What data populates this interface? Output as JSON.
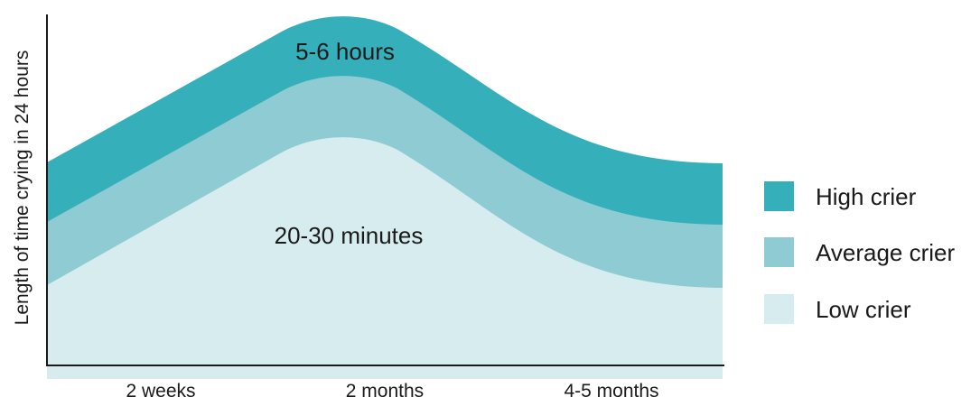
{
  "chart_data": {
    "type": "area",
    "title": "",
    "xlabel": "",
    "ylabel": "Length of time crying in 24 hours",
    "categories": [
      "2 weeks",
      "2 months",
      "4-5 months"
    ],
    "series": [
      {
        "name": "High crier",
        "color": "#35b0bb",
        "values": [
          5,
          8,
          5
        ]
      },
      {
        "name": "Average crier",
        "color": "#8ecbd3",
        "values": [
          4,
          7,
          4
        ]
      },
      {
        "name": "Low crier",
        "color": "#d6ecef",
        "values": [
          3,
          6,
          3
        ]
      }
    ],
    "annotations": [
      {
        "text": "5-6 hours",
        "series": "High crier"
      },
      {
        "text": "20-30 minutes",
        "series": "Low crier"
      }
    ],
    "legend_position": "right",
    "grid": false
  }
}
